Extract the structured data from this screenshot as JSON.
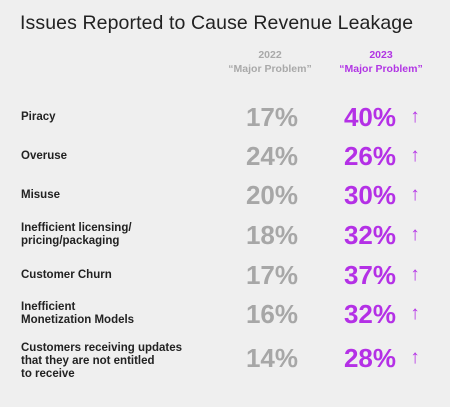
{
  "chart_data": {
    "type": "table",
    "title": "Issues Reported to Cause Revenue Leakage",
    "columns": [
      {
        "year": "2022",
        "subtitle": "“Major Problem”"
      },
      {
        "year": "2023",
        "subtitle": "“Major Problem”"
      }
    ],
    "rows": [
      {
        "label": "Piracy",
        "v2022": "17%",
        "v2023": "40%",
        "trend": "↑"
      },
      {
        "label": "Overuse",
        "v2022": "24%",
        "v2023": "26%",
        "trend": "↑"
      },
      {
        "label": "Misuse",
        "v2022": "20%",
        "v2023": "30%",
        "trend": "↑"
      },
      {
        "label": "Inefficient licensing/\npricing/packaging",
        "v2022": "18%",
        "v2023": "32%",
        "trend": "↑"
      },
      {
        "label": "Customer Churn",
        "v2022": "17%",
        "v2023": "37%",
        "trend": "↑"
      },
      {
        "label": "Inefficient\nMonetization Models",
        "v2022": "16%",
        "v2023": "32%",
        "trend": "↑"
      },
      {
        "label": "Customers receiving updates\nthat they are not entitled\nto receive",
        "v2022": "14%",
        "v2023": "28%",
        "trend": "↑"
      }
    ],
    "colors": {
      "y2022": "#a7a7a7",
      "y2023": "#b430e6",
      "background": "#efefef"
    }
  }
}
